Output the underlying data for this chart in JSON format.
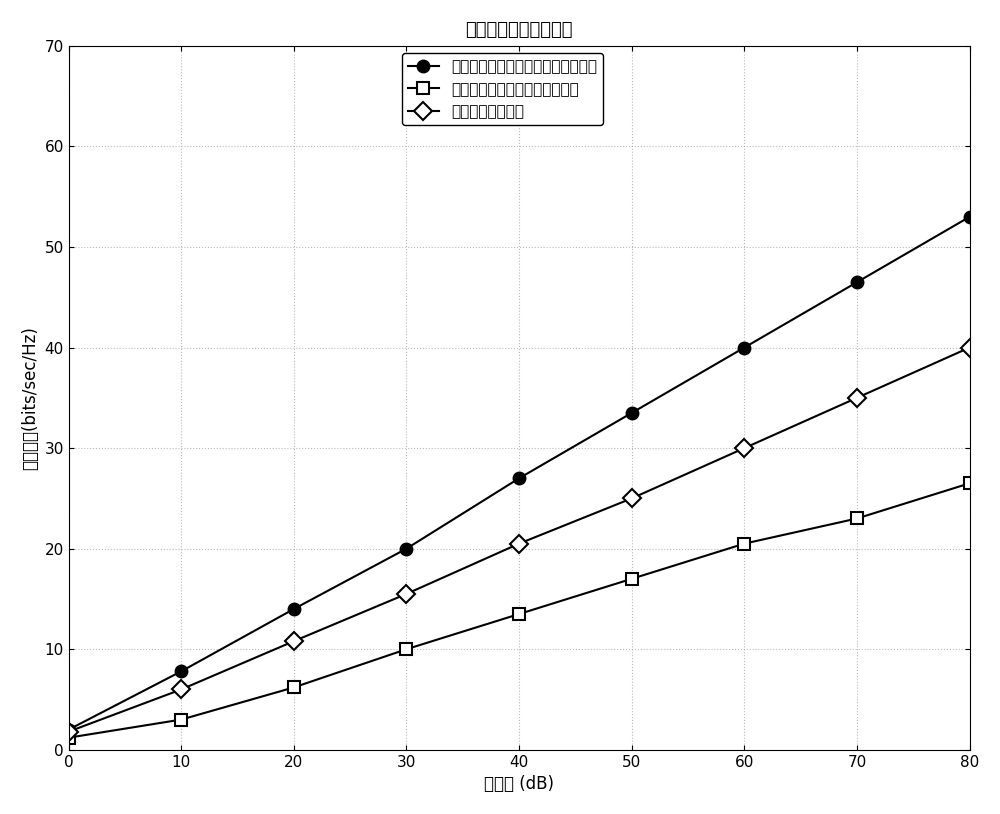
{
  "title": "系统容量和信噪比关系",
  "xlabel": "信噪比 (dB)",
  "ylabel": "系统容量(bits/sec/Hz)",
  "x": [
    0,
    10,
    20,
    30,
    40,
    50,
    60,
    70,
    80
  ],
  "y_full_duplex": [
    2.0,
    7.8,
    14.0,
    20.0,
    27.0,
    33.5,
    40.0,
    46.5,
    53.0
  ],
  "y_half_duplex": [
    1.2,
    3.0,
    6.2,
    10.0,
    13.5,
    17.0,
    20.5,
    23.0,
    26.5
  ],
  "y_invention": [
    1.8,
    6.0,
    10.8,
    15.5,
    20.5,
    25.0,
    30.0,
    35.0,
    40.0
  ],
  "legend_full": "全双工基站蜂窝网络的理论系统容量",
  "legend_half": "半双工基站蜂窝网络的系统容量",
  "legend_inv": "本发明的系统容量",
  "xlim": [
    0,
    80
  ],
  "ylim": [
    0,
    70
  ],
  "xticks": [
    0,
    10,
    20,
    30,
    40,
    50,
    60,
    70,
    80
  ],
  "yticks": [
    0,
    10,
    20,
    30,
    40,
    50,
    60,
    70
  ],
  "line_color": "#000000",
  "bg_color": "#ffffff",
  "grid_color": "#aaaaaa",
  "title_fontsize": 13,
  "label_fontsize": 12,
  "legend_fontsize": 11,
  "tick_fontsize": 11
}
